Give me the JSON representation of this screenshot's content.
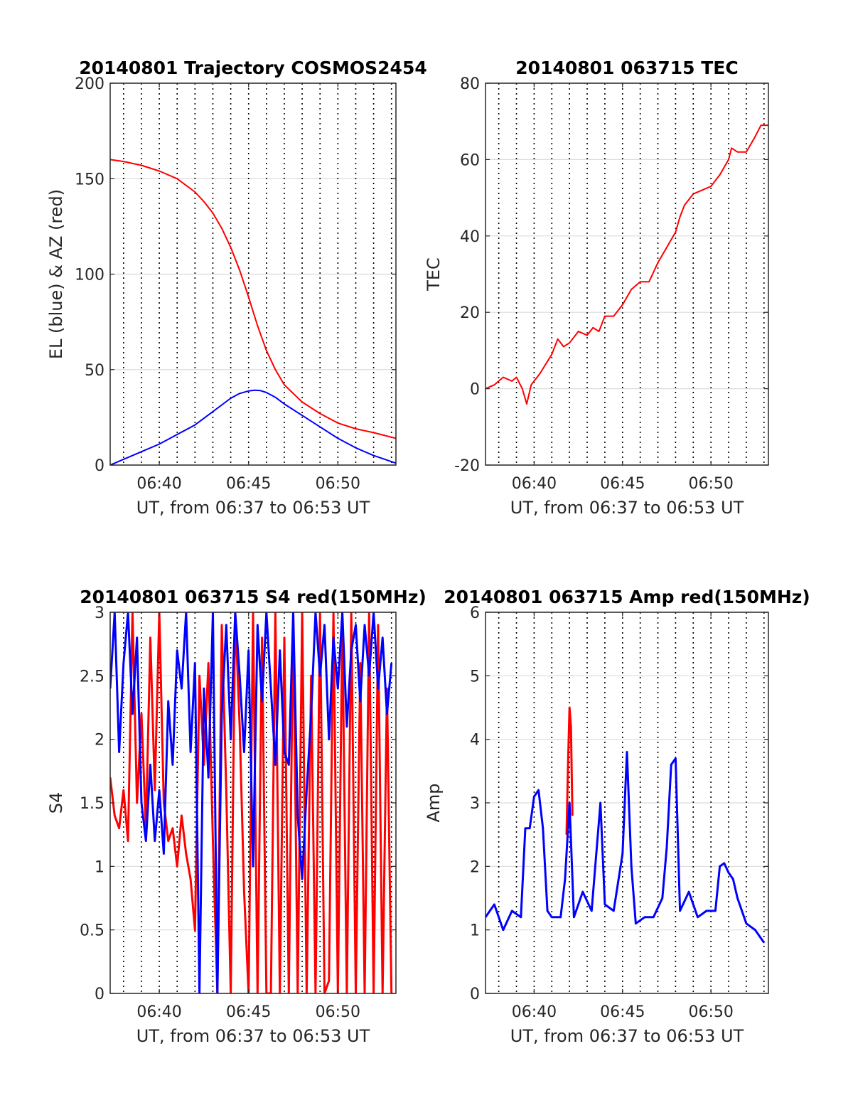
{
  "chart_data": [
    {
      "type": "line",
      "title": "20140801 Trajectory COSMOS2454",
      "xlabel": "UT, from 06:37 to 06:53 UT",
      "ylabel": "EL (blue) & AZ (red)",
      "xlim": [
        "06:37:15",
        "06:53:15"
      ],
      "ylim": [
        0,
        200
      ],
      "xticks": [
        "06:40",
        "06:45",
        "06:50"
      ],
      "yticks": [
        0,
        50,
        100,
        150,
        200
      ],
      "grid": "horizontal solid, vertical dotted each minute",
      "series": [
        {
          "color": "#ff0000",
          "x": [
            "06:37:15",
            "06:38:00",
            "06:39:00",
            "06:40:00",
            "06:41:00",
            "06:42:00",
            "06:42:30",
            "06:43:00",
            "06:43:30",
            "06:44:00",
            "06:44:30",
            "06:45:00",
            "06:45:30",
            "06:46:00",
            "06:46:30",
            "06:47:00",
            "06:48:00",
            "06:49:00",
            "06:50:00",
            "06:51:00",
            "06:52:00",
            "06:53:15"
          ],
          "values": [
            160,
            159,
            157,
            154,
            150,
            143,
            138,
            132,
            124,
            114,
            102,
            88,
            73,
            60,
            50,
            42,
            33,
            27,
            22,
            19,
            17,
            14
          ]
        },
        {
          "color": "#0000ff",
          "x": [
            "06:37:15",
            "06:38:00",
            "06:39:00",
            "06:40:00",
            "06:41:00",
            "06:42:00",
            "06:43:00",
            "06:44:00",
            "06:44:30",
            "06:45:00",
            "06:45:20",
            "06:45:40",
            "06:46:00",
            "06:46:30",
            "06:47:00",
            "06:48:00",
            "06:49:00",
            "06:50:00",
            "06:51:00",
            "06:52:00",
            "06:53:15"
          ],
          "values": [
            0,
            3,
            7,
            11,
            16,
            21,
            28,
            35,
            37.5,
            38.8,
            39.2,
            39,
            38,
            35.5,
            32,
            26,
            20,
            14,
            9,
            5,
            1
          ]
        }
      ]
    },
    {
      "type": "line",
      "title": "20140801 063715 TEC",
      "xlabel": "UT, from 06:37 to 06:53 UT",
      "ylabel": "TEC",
      "xlim": [
        "06:37:15",
        "06:53:15"
      ],
      "ylim": [
        -20,
        80
      ],
      "xticks": [
        "06:40",
        "06:45",
        "06:50"
      ],
      "yticks": [
        -20,
        0,
        20,
        40,
        60,
        80
      ],
      "grid": "horizontal solid, vertical dotted each minute",
      "series": [
        {
          "color": "#ff0000",
          "x": [
            "06:37:15",
            "06:37:45",
            "06:38:15",
            "06:38:45",
            "06:39:00",
            "06:39:20",
            "06:39:35",
            "06:39:50",
            "06:40:20",
            "06:41:00",
            "06:41:20",
            "06:41:40",
            "06:42:00",
            "06:42:30",
            "06:43:00",
            "06:43:20",
            "06:43:40",
            "06:44:00",
            "06:44:30",
            "06:45:00",
            "06:45:30",
            "06:46:00",
            "06:46:30",
            "06:47:00",
            "06:47:30",
            "06:48:00",
            "06:48:15",
            "06:48:30",
            "06:49:00",
            "06:49:30",
            "06:50:00",
            "06:50:30",
            "06:51:00",
            "06:51:10",
            "06:51:30",
            "06:52:00",
            "06:52:30",
            "06:52:50",
            "06:53:15"
          ],
          "values": [
            0,
            1,
            3,
            2,
            3,
            0,
            -4,
            1,
            4,
            9,
            13,
            11,
            12,
            15,
            14,
            16,
            15,
            19,
            19,
            22,
            26,
            28,
            28,
            33,
            37,
            41,
            45,
            48,
            51,
            52,
            53,
            56,
            60,
            63,
            62,
            62,
            66,
            69,
            69
          ]
        }
      ]
    },
    {
      "type": "line",
      "title": "20140801 063715 S4 red(150MHz)",
      "xlabel": "UT, from 06:37 to 06:53 UT",
      "ylabel": "S4",
      "xlim": [
        "06:37:15",
        "06:53:15"
      ],
      "ylim": [
        0,
        3
      ],
      "xticks": [
        "06:40",
        "06:45",
        "06:50"
      ],
      "yticks": [
        0,
        0.5,
        1,
        1.5,
        2,
        2.5,
        3
      ],
      "grid": "horizontal solid, vertical dotted each minute",
      "series": [
        {
          "color": "#ff0000",
          "x": [
            "06:37:15",
            "06:37:30",
            "06:37:45",
            "06:38:00",
            "06:38:15",
            "06:38:30",
            "06:38:45",
            "06:39:00",
            "06:39:15",
            "06:39:30",
            "06:39:45",
            "06:40:00",
            "06:40:15",
            "06:40:30",
            "06:40:45",
            "06:41:00",
            "06:41:15",
            "06:41:30",
            "06:41:45",
            "06:42:00",
            "06:42:15",
            "06:42:30",
            "06:42:45",
            "06:43:00",
            "06:43:15",
            "06:43:30",
            "06:43:45",
            "06:44:00",
            "06:44:15",
            "06:44:30",
            "06:44:45",
            "06:45:00",
            "06:45:15",
            "06:45:30",
            "06:45:45",
            "06:46:00",
            "06:46:15",
            "06:46:30",
            "06:46:45",
            "06:47:00",
            "06:47:15",
            "06:47:30",
            "06:47:45",
            "06:48:00",
            "06:48:15",
            "06:48:30",
            "06:48:45",
            "06:49:00",
            "06:49:15",
            "06:49:30",
            "06:49:45",
            "06:50:00",
            "06:50:15",
            "06:50:30",
            "06:50:45",
            "06:51:00",
            "06:51:15",
            "06:51:30",
            "06:51:45",
            "06:52:00",
            "06:52:15",
            "06:52:30",
            "06:52:45",
            "06:53:00"
          ],
          "values": [
            1.7,
            1.4,
            1.3,
            1.6,
            1.2,
            3,
            1.5,
            2.2,
            1.3,
            2.8,
            1.6,
            3,
            1.5,
            1.2,
            1.3,
            1.0,
            1.4,
            1.1,
            0.9,
            0.5,
            2.5,
            1.8,
            2.6,
            1.2,
            0,
            2.9,
            1.6,
            0,
            3,
            2.1,
            0.8,
            0,
            3,
            0,
            2.8,
            0,
            0,
            3,
            0,
            2.8,
            0,
            3,
            0,
            3,
            0,
            2.5,
            0,
            3,
            0,
            0.1,
            3,
            0,
            2.9,
            0,
            3,
            0,
            2.6,
            0,
            3,
            0,
            2.9,
            0,
            2.4,
            0
          ]
        },
        {
          "color": "#0000ff",
          "x": [
            "06:37:15",
            "06:37:30",
            "06:37:45",
            "06:38:00",
            "06:38:15",
            "06:38:30",
            "06:38:45",
            "06:39:00",
            "06:39:15",
            "06:39:30",
            "06:39:45",
            "06:40:00",
            "06:40:15",
            "06:40:30",
            "06:40:45",
            "06:41:00",
            "06:41:15",
            "06:41:30",
            "06:41:45",
            "06:42:00",
            "06:42:15",
            "06:42:30",
            "06:42:45",
            "06:43:00",
            "06:43:15",
            "06:43:30",
            "06:43:45",
            "06:44:00",
            "06:44:15",
            "06:44:30",
            "06:44:45",
            "06:45:00",
            "06:45:15",
            "06:45:30",
            "06:45:45",
            "06:46:00",
            "06:46:15",
            "06:46:30",
            "06:46:45",
            "06:47:00",
            "06:47:15",
            "06:47:30",
            "06:47:45",
            "06:48:00",
            "06:48:15",
            "06:48:30",
            "06:48:45",
            "06:49:00",
            "06:49:15",
            "06:49:30",
            "06:49:45",
            "06:50:00",
            "06:50:15",
            "06:50:30",
            "06:50:45",
            "06:51:00",
            "06:51:15",
            "06:51:30",
            "06:51:45",
            "06:52:00",
            "06:52:15",
            "06:52:30",
            "06:52:45",
            "06:53:00"
          ],
          "values": [
            2.4,
            3,
            1.9,
            2.6,
            3,
            2.2,
            2.8,
            1.5,
            1.2,
            1.8,
            1.2,
            1.6,
            1.1,
            2.3,
            1.8,
            2.7,
            2.4,
            3,
            1.9,
            2.6,
            0,
            2.4,
            1.7,
            3,
            0,
            2.2,
            2.9,
            2.0,
            3,
            2.5,
            1.9,
            2.7,
            1.0,
            2.9,
            2.3,
            3,
            2.4,
            1.8,
            2.7,
            1.9,
            1.8,
            3,
            1.4,
            0.9,
            1.6,
            2.2,
            3,
            2.5,
            2.9,
            2.0,
            2.8,
            2.4,
            3,
            2.1,
            2.7,
            2.9,
            2.3,
            2.9,
            2.5,
            3,
            2.4,
            2.8,
            2.2,
            2.6
          ]
        }
      ]
    },
    {
      "type": "line",
      "title": "20140801 063715 Amp red(150MHz)",
      "xlabel": "UT, from 06:37 to 06:53 UT",
      "ylabel": "Amp",
      "xlim": [
        "06:37:15",
        "06:53:15"
      ],
      "ylim": [
        0,
        6
      ],
      "xticks": [
        "06:40",
        "06:45",
        "06:50"
      ],
      "yticks": [
        0,
        1,
        2,
        3,
        4,
        5,
        6
      ],
      "grid": "horizontal solid, vertical dotted each minute",
      "series": [
        {
          "color": "#ff0000",
          "x": [
            "06:41:50",
            "06:41:55",
            "06:42:00",
            "06:42:05",
            "06:42:10"
          ],
          "values": [
            2.5,
            3.6,
            4.5,
            4.2,
            2.8
          ]
        },
        {
          "color": "#0000ff",
          "x": [
            "06:37:15",
            "06:37:45",
            "06:38:15",
            "06:38:45",
            "06:39:15",
            "06:39:30",
            "06:39:45",
            "06:40:00",
            "06:40:15",
            "06:40:30",
            "06:40:45",
            "06:41:00",
            "06:41:30",
            "06:41:45",
            "06:42:00",
            "06:42:15",
            "06:42:45",
            "06:43:15",
            "06:43:45",
            "06:44:00",
            "06:44:30",
            "06:45:00",
            "06:45:15",
            "06:45:30",
            "06:45:45",
            "06:46:15",
            "06:46:45",
            "06:47:15",
            "06:47:30",
            "06:47:45",
            "06:48:00",
            "06:48:15",
            "06:48:45",
            "06:49:15",
            "06:49:45",
            "06:50:15",
            "06:50:30",
            "06:50:45",
            "06:51:00",
            "06:51:15",
            "06:51:30",
            "06:52:00",
            "06:52:30",
            "06:53:00"
          ],
          "values": [
            1.2,
            1.4,
            1.0,
            1.3,
            1.2,
            2.6,
            2.6,
            3.1,
            3.2,
            2.6,
            1.3,
            1.2,
            1.2,
            1.8,
            3.0,
            1.2,
            1.6,
            1.3,
            3.0,
            1.4,
            1.3,
            2.2,
            3.8,
            2.0,
            1.1,
            1.2,
            1.2,
            1.5,
            2.3,
            3.6,
            3.7,
            1.3,
            1.6,
            1.2,
            1.3,
            1.3,
            2.0,
            2.05,
            1.9,
            1.8,
            1.5,
            1.1,
            1.0,
            0.8
          ]
        }
      ]
    }
  ]
}
